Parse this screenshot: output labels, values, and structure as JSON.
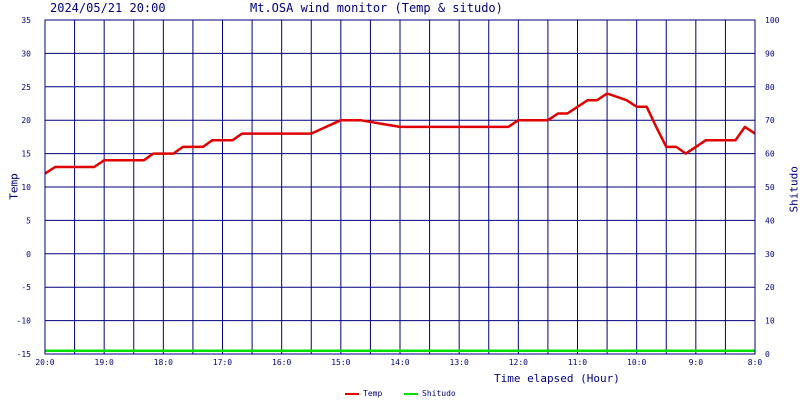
{
  "header": {
    "date": "2024/05/21 20:00",
    "title": "Mt.OSA wind monitor (Temp & situdo)"
  },
  "colors": {
    "background": "#ffffff",
    "grid": "#000080",
    "text": "#000080",
    "temp": "#e00000",
    "shitudo": "#00e000"
  },
  "chart_data": {
    "type": "line",
    "xlabel": "Time elapsed (Hour)",
    "ylabel_left": "Temp",
    "ylabel_right": "Shitudo",
    "ylim_left": [
      -15,
      35
    ],
    "ylim_right": [
      0,
      100
    ],
    "xlim": [
      0,
      12
    ],
    "y_ticks_left": [
      "-15",
      "-10",
      "-5",
      "0",
      "5",
      "10",
      "15",
      "20",
      "25",
      "30",
      "35"
    ],
    "y_ticks_right": [
      "0",
      "10",
      "20",
      "30",
      "40",
      "50",
      "60",
      "70",
      "80",
      "90",
      "100"
    ],
    "x_tick_labels": [
      "20:0",
      "19:0",
      "18:0",
      "17:0",
      "16:0",
      "15:0",
      "14:0",
      "13:0",
      "12:0",
      "11:0",
      "10:0",
      "9:0",
      "8:0"
    ],
    "grid": true,
    "legend": "bottom-center",
    "series": [
      {
        "name": "Temp",
        "axis": "left",
        "x": [
          0,
          0.17,
          0.33,
          0.83,
          1.0,
          1.67,
          1.83,
          2.17,
          2.33,
          2.67,
          2.83,
          3.17,
          3.33,
          3.83,
          4.0,
          4.5,
          5.0,
          5.25,
          5.33,
          6.0,
          6.5,
          7.0,
          7.5,
          7.83,
          8.0,
          8.17,
          8.5,
          8.67,
          8.83,
          9.0,
          9.17,
          9.33,
          9.5,
          9.83,
          10.0,
          10.17,
          10.33,
          10.5,
          10.67,
          10.83,
          11.0,
          11.17,
          11.33,
          11.5,
          11.67,
          11.83,
          12.0
        ],
        "values": [
          12,
          13,
          13,
          13,
          14,
          14,
          15,
          15,
          16,
          16,
          17,
          17,
          18,
          18,
          18,
          18,
          20,
          20,
          20,
          19,
          19,
          19,
          19,
          19,
          20,
          20,
          20,
          21,
          21,
          22,
          23,
          23,
          24,
          23,
          22,
          22,
          19,
          16,
          16,
          15,
          16,
          17,
          17,
          17,
          17,
          19,
          18
        ]
      },
      {
        "name": "Shitudo",
        "axis": "right",
        "x": [
          0,
          12
        ],
        "values": [
          1,
          1
        ]
      }
    ]
  }
}
